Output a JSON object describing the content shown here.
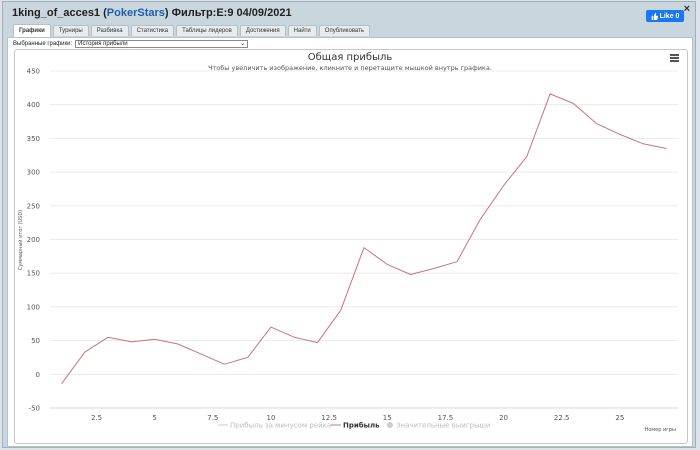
{
  "window": {
    "title_user": "1king_of_acces1",
    "title_site": "PokerStars",
    "title_filter": "Фильтр:E:9 04/09/2021",
    "close_label": "×",
    "like_label": "Like 0"
  },
  "tabs": [
    "Графики",
    "Турниры",
    "Разбивка",
    "Статистика",
    "Таблицы лидеров",
    "Достижения",
    "Найти",
    "Опубликовать"
  ],
  "chart_select": {
    "label": "Выбранные графики:",
    "value": "История прибыли"
  },
  "chart_data": {
    "type": "line",
    "title": "Общая прибыль",
    "subtitle": "Чтобы увеличить изображение, кликните и перетащите мышкой внутрь графика.",
    "xlabel": "Номер игры",
    "ylabel": "Суммарный итог (USD)",
    "xlim": [
      0.5,
      27.5
    ],
    "ylim": [
      -50,
      450
    ],
    "x_ticks": [
      "2.5",
      "5",
      "7.5",
      "10",
      "12.5",
      "15",
      "17.5",
      "20",
      "22.5",
      "25"
    ],
    "y_ticks": [
      "450",
      "400",
      "350",
      "300",
      "250",
      "200",
      "150",
      "100",
      "50",
      "0",
      "-50"
    ],
    "grid": true,
    "legend_position": "bottom-center",
    "series": [
      {
        "name": "Прибыль",
        "color": "#c9737a",
        "x": [
          1,
          2,
          3,
          4,
          5,
          6,
          7,
          8,
          9,
          10,
          11,
          12,
          13,
          14,
          15,
          16,
          17,
          18,
          19,
          20,
          21,
          22,
          23,
          24,
          25,
          26,
          27
        ],
        "values": [
          -14,
          33,
          55,
          48,
          52,
          45,
          30,
          15,
          25,
          70,
          55,
          47,
          95,
          188,
          163,
          148,
          157,
          167,
          230,
          280,
          323,
          416,
          402,
          372,
          356,
          342,
          335
        ]
      },
      {
        "name": "Прибыль за минусом рейка",
        "color": "#cccccc",
        "hidden": true
      },
      {
        "name": "Значительные выигрыши",
        "color": "#cccccc",
        "hidden": true
      }
    ]
  },
  "icons": {
    "menu": "hamburger-menu-icon",
    "like": "facebook-like-icon"
  }
}
